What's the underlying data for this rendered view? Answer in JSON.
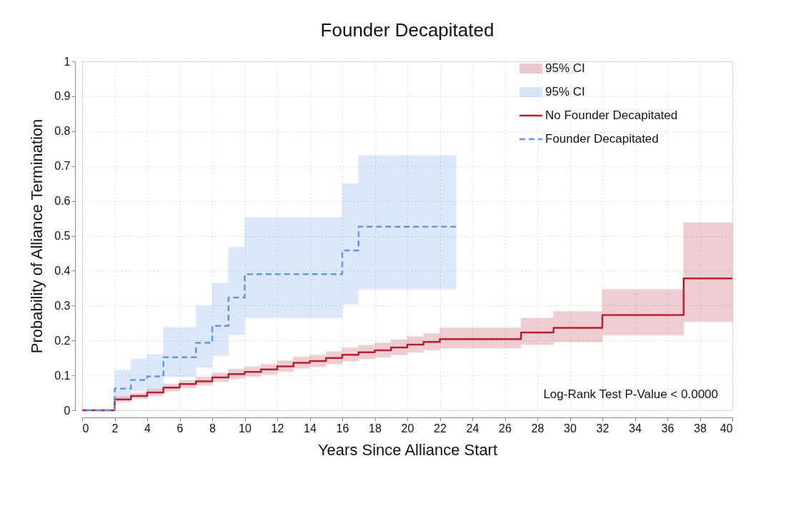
{
  "chart_data": {
    "type": "step",
    "title": "Founder Decapitated",
    "xlabel": "Years Since Alliance Start",
    "ylabel": "Probability of Alliance Termination",
    "xlim": [
      0,
      40
    ],
    "ylim": [
      0,
      1
    ],
    "xticks": [
      0,
      2,
      4,
      6,
      8,
      10,
      12,
      14,
      16,
      18,
      20,
      22,
      24,
      26,
      28,
      30,
      32,
      34,
      36,
      38,
      40
    ],
    "yticks": [
      0,
      0.1,
      0.2,
      0.3,
      0.4,
      0.5,
      0.6,
      0.7,
      0.8,
      0.9,
      1
    ],
    "grid": true,
    "legend": "top right",
    "annotations": [
      "95% CI",
      "95% CI",
      "Log-Rank Test P-Value < 0.0000"
    ],
    "series": [
      {
        "name": "No Founder Decapitated",
        "color": "#b22234",
        "line_style": "solid",
        "x": [
          0,
          2,
          3,
          4,
          5,
          6,
          7,
          8,
          9,
          10,
          11,
          12,
          13,
          14,
          15,
          16,
          17,
          18,
          19,
          20,
          21,
          22,
          27,
          29,
          32,
          37,
          40
        ],
        "values": [
          0,
          0.031,
          0.041,
          0.051,
          0.065,
          0.075,
          0.083,
          0.094,
          0.104,
          0.11,
          0.117,
          0.126,
          0.136,
          0.141,
          0.15,
          0.159,
          0.166,
          0.172,
          0.18,
          0.188,
          0.196,
          0.204,
          0.223,
          0.236,
          0.273,
          0.378,
          0.378
        ],
        "lower": [
          0,
          0.024,
          0.033,
          0.042,
          0.055,
          0.064,
          0.072,
          0.082,
          0.091,
          0.097,
          0.103,
          0.111,
          0.12,
          0.125,
          0.133,
          0.141,
          0.147,
          0.152,
          0.159,
          0.166,
          0.173,
          0.178,
          0.188,
          0.196,
          0.216,
          0.254,
          0.254
        ],
        "upper": [
          0,
          0.039,
          0.049,
          0.061,
          0.075,
          0.086,
          0.095,
          0.107,
          0.118,
          0.124,
          0.132,
          0.142,
          0.153,
          0.158,
          0.168,
          0.179,
          0.186,
          0.193,
          0.202,
          0.211,
          0.22,
          0.236,
          0.264,
          0.283,
          0.346,
          0.538,
          0.538
        ]
      },
      {
        "name": "Founder Decapitated",
        "color": "#6495ed",
        "line_style": "dashed",
        "x": [
          0,
          2,
          3,
          4,
          5,
          7,
          8,
          9,
          10,
          16,
          17,
          23
        ],
        "values": [
          0,
          0.062,
          0.087,
          0.097,
          0.152,
          0.193,
          0.242,
          0.323,
          0.39,
          0.458,
          0.526,
          0.526
        ],
        "lower": [
          0,
          0.037,
          0.055,
          0.059,
          0.096,
          0.123,
          0.157,
          0.217,
          0.266,
          0.303,
          0.347,
          0.347
        ],
        "upper": [
          0,
          0.115,
          0.147,
          0.16,
          0.237,
          0.299,
          0.364,
          0.468,
          0.552,
          0.65,
          0.73,
          0.73
        ]
      }
    ]
  }
}
